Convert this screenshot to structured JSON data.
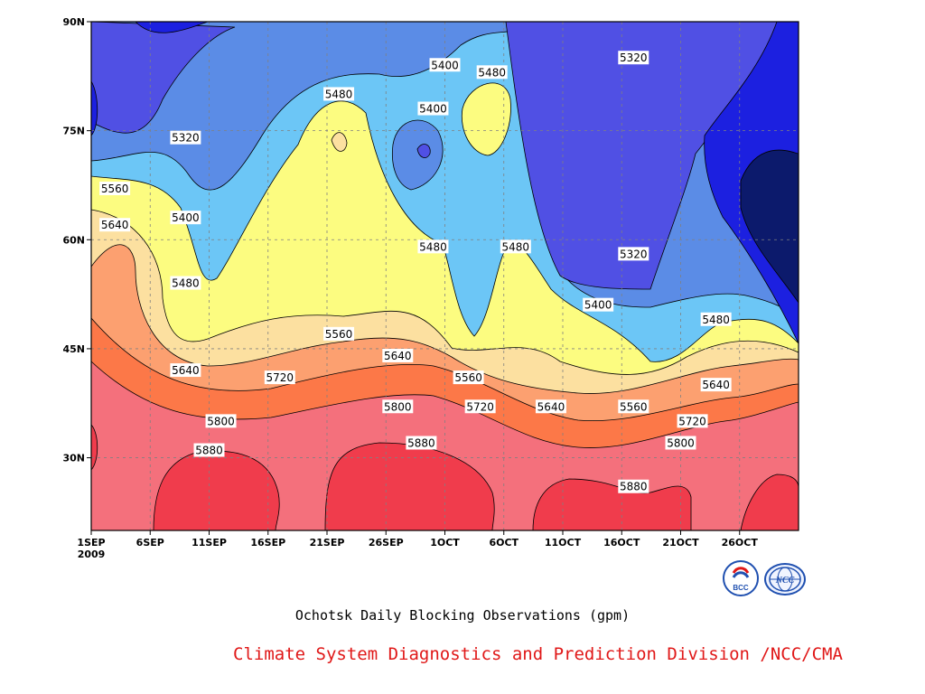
{
  "chart_data": {
    "type": "heatmap",
    "title": "Ochotsk Daily Blocking Observations (gpm)",
    "credit": "Climate System Diagnostics and Prediction Division /NCC/CMA",
    "xlabel": "",
    "ylabel": "",
    "x_ticks": [
      "1SEP",
      "6SEP",
      "11SEP",
      "16SEP",
      "21SEP",
      "26SEP",
      "1OCT",
      "6OCT",
      "11OCT",
      "16OCT",
      "21OCT",
      "26OCT"
    ],
    "x_year_label": "2009",
    "y_ticks": [
      "30N",
      "45N",
      "60N",
      "75N",
      "90N"
    ],
    "x_range_days": [
      0,
      60
    ],
    "y_range_lat": [
      20,
      90
    ],
    "grid": true,
    "contour_levels": [
      5320,
      5400,
      5480,
      5560,
      5640,
      5720,
      5800,
      5880
    ],
    "fill_colors": {
      "lt5240": "#0c1a6c",
      "5240": "#1c20e0",
      "5320": "#5050e4",
      "5400": "#5b8ce6",
      "5480": "#6cc6f6",
      "5560": "#fcfc80",
      "5640": "#fce0a0",
      "5720": "#fca070",
      "5800": "#fc7848",
      "5880": "#f4707c",
      "gt5880": "#f03c4c"
    },
    "contour_labels": [
      {
        "value": "5320",
        "day": 8,
        "lat": 74
      },
      {
        "value": "5400",
        "day": 8,
        "lat": 63
      },
      {
        "value": "5480",
        "day": 8,
        "lat": 54
      },
      {
        "value": "5560",
        "day": 2,
        "lat": 67
      },
      {
        "value": "5640",
        "day": 2,
        "lat": 62
      },
      {
        "value": "5640",
        "day": 8,
        "lat": 42
      },
      {
        "value": "5800",
        "day": 11,
        "lat": 35
      },
      {
        "value": "5880",
        "day": 10,
        "lat": 31
      },
      {
        "value": "5720",
        "day": 16,
        "lat": 41
      },
      {
        "value": "5480",
        "day": 21,
        "lat": 80
      },
      {
        "value": "5560",
        "day": 21,
        "lat": 47
      },
      {
        "value": "5400",
        "day": 30,
        "lat": 84
      },
      {
        "value": "5400",
        "day": 29,
        "lat": 78
      },
      {
        "value": "5480",
        "day": 34,
        "lat": 83
      },
      {
        "value": "5480",
        "day": 29,
        "lat": 59
      },
      {
        "value": "5480",
        "day": 36,
        "lat": 59
      },
      {
        "value": "5640",
        "day": 26,
        "lat": 44
      },
      {
        "value": "5800",
        "day": 26,
        "lat": 37
      },
      {
        "value": "5880",
        "day": 28,
        "lat": 32
      },
      {
        "value": "5560",
        "day": 32,
        "lat": 41
      },
      {
        "value": "5720",
        "day": 33,
        "lat": 37
      },
      {
        "value": "5640",
        "day": 39,
        "lat": 37
      },
      {
        "value": "5400",
        "day": 43,
        "lat": 51
      },
      {
        "value": "5320",
        "day": 46,
        "lat": 85
      },
      {
        "value": "5320",
        "day": 46,
        "lat": 58
      },
      {
        "value": "5560",
        "day": 46,
        "lat": 37
      },
      {
        "value": "5880",
        "day": 46,
        "lat": 26
      },
      {
        "value": "5800",
        "day": 50,
        "lat": 32
      },
      {
        "value": "5720",
        "day": 51,
        "lat": 35
      },
      {
        "value": "5640",
        "day": 53,
        "lat": 40
      },
      {
        "value": "5480",
        "day": 53,
        "lat": 49
      }
    ]
  },
  "logos": [
    {
      "name": "BCC",
      "label": "BCC"
    },
    {
      "name": "NCC",
      "label": "NCC"
    }
  ]
}
